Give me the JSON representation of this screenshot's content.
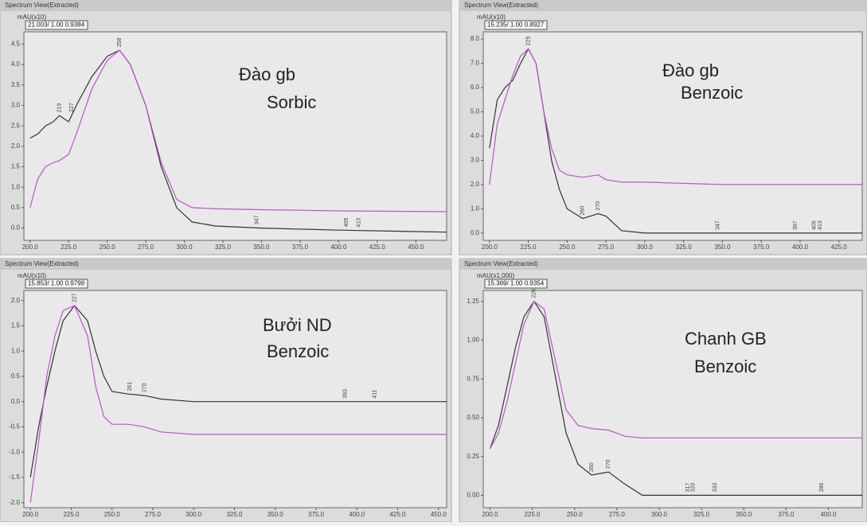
{
  "chart_data": [
    {
      "type": "line",
      "title": "Spectrum View(Extracted)",
      "y_label": "mAU(x10)",
      "header": "21.003/ 1.00 0.9384",
      "annotations": [
        "Đào gb",
        "Sorbic"
      ],
      "peaks": [
        219,
        227,
        258,
        347,
        405,
        413
      ],
      "x": [
        200,
        205,
        210,
        215,
        219,
        225,
        230,
        240,
        250,
        258,
        265,
        275,
        285,
        295,
        305,
        320,
        350,
        400,
        470
      ],
      "series": [
        {
          "color": "#333333",
          "values": [
            2.2,
            2.3,
            2.5,
            2.6,
            2.75,
            2.6,
            3.0,
            3.7,
            4.2,
            4.35,
            4.0,
            3.0,
            1.5,
            0.5,
            0.15,
            0.05,
            0.0,
            -0.05,
            -0.1
          ]
        },
        {
          "color": "#c050d0",
          "values": [
            0.5,
            1.2,
            1.5,
            1.6,
            1.65,
            1.8,
            2.3,
            3.4,
            4.1,
            4.35,
            4.0,
            3.0,
            1.6,
            0.7,
            0.5,
            0.47,
            0.45,
            0.42,
            0.4
          ]
        }
      ],
      "xlim": [
        196,
        470
      ],
      "xticks": [
        {
          "value": 200,
          "label": "200.0"
        },
        {
          "value": 225,
          "label": "225.0"
        },
        {
          "value": 250,
          "label": "250.0"
        },
        {
          "value": 275,
          "label": "275.0"
        },
        {
          "value": 300,
          "label": "300.0"
        },
        {
          "value": 325,
          "label": "325.0"
        },
        {
          "value": 350,
          "label": "350.0"
        },
        {
          "value": 375,
          "label": "375.0"
        },
        {
          "value": 400,
          "label": "400.0"
        },
        {
          "value": 425,
          "label": "425.0"
        },
        {
          "value": 450,
          "label": "450.0"
        }
      ],
      "ylim": [
        -0.3,
        4.8
      ],
      "yticks": [
        {
          "value": 0,
          "label": "0.0"
        },
        0.5,
        {
          "value": 1,
          "label": "1.0"
        },
        1.5,
        {
          "value": 2,
          "label": "2.0"
        },
        2.5,
        {
          "value": 3,
          "label": "3.0"
        },
        3.5,
        {
          "value": 4,
          "label": "4.0"
        },
        4.5
      ]
    },
    {
      "type": "line",
      "title": "Spectrum View(Extracted)",
      "y_label": "mAU(x10)",
      "header": "15.235/ 1.00 0.8927",
      "annotations": [
        "Đào gb",
        "Benzoic"
      ],
      "peaks": [
        225,
        260,
        270,
        347,
        397,
        409,
        413
      ],
      "x": [
        200,
        205,
        210,
        215,
        220,
        225,
        230,
        235,
        240,
        245,
        250,
        260,
        270,
        275,
        285,
        300,
        350,
        440
      ],
      "series": [
        {
          "color": "#333333",
          "values": [
            3.5,
            5.5,
            6.0,
            6.3,
            7.0,
            7.6,
            7.0,
            5.0,
            3.0,
            1.8,
            1.0,
            0.6,
            0.8,
            0.7,
            0.1,
            0.0,
            0.0,
            0.0
          ]
        },
        {
          "color": "#c050d0",
          "values": [
            2.0,
            4.5,
            5.5,
            6.5,
            7.3,
            7.6,
            7.0,
            5.0,
            3.5,
            2.6,
            2.4,
            2.3,
            2.4,
            2.2,
            2.1,
            2.1,
            2.0,
            2.0
          ]
        }
      ],
      "xlim": [
        196,
        440
      ],
      "xticks": [
        {
          "value": 200,
          "label": "200.0"
        },
        {
          "value": 225,
          "label": "225.0"
        },
        {
          "value": 250,
          "label": "250.0"
        },
        {
          "value": 275,
          "label": "275.0"
        },
        {
          "value": 300,
          "label": "300.0"
        },
        {
          "value": 325,
          "label": "325.0"
        },
        {
          "value": 350,
          "label": "350.0"
        },
        {
          "value": 375,
          "label": "375.0"
        },
        {
          "value": 400,
          "label": "400.0"
        },
        {
          "value": 425,
          "label": "425.0"
        }
      ],
      "ylim": [
        -0.3,
        8.3
      ],
      "yticks": [
        {
          "value": 0,
          "label": "0.0"
        },
        {
          "value": 1,
          "label": "1.0"
        },
        {
          "value": 2,
          "label": "2.0"
        },
        {
          "value": 3,
          "label": "3.0"
        },
        {
          "value": 4,
          "label": "4.0"
        },
        {
          "value": 5,
          "label": "5.0"
        },
        {
          "value": 6,
          "label": "6.0"
        },
        {
          "value": 7,
          "label": "7.0"
        },
        {
          "value": 8,
          "label": "8.0"
        }
      ]
    },
    {
      "type": "line",
      "title": "Spectrum View(Extracted)",
      "y_label": "mAU(x10)",
      "header": "15.853/ 1.00 0.9798",
      "annotations": [
        "Bưởi ND",
        "Benzoic"
      ],
      "peaks": [
        227,
        261,
        270,
        393,
        411
      ],
      "x": [
        200,
        205,
        210,
        215,
        220,
        227,
        235,
        240,
        245,
        250,
        260,
        270,
        280,
        300,
        350,
        455
      ],
      "series": [
        {
          "color": "#333333",
          "values": [
            -1.5,
            -0.5,
            0.3,
            1.0,
            1.6,
            1.9,
            1.6,
            1.0,
            0.5,
            0.2,
            0.15,
            0.12,
            0.05,
            0.0,
            0.0,
            0.0
          ]
        },
        {
          "color": "#c050d0",
          "values": [
            -2.0,
            -0.8,
            0.5,
            1.3,
            1.8,
            1.9,
            1.3,
            0.3,
            -0.3,
            -0.45,
            -0.45,
            -0.5,
            -0.6,
            -0.65,
            -0.65,
            -0.65
          ]
        }
      ],
      "xlim": [
        196,
        455
      ],
      "xticks": [
        {
          "value": 200,
          "label": "200.0"
        },
        {
          "value": 225,
          "label": "225.0"
        },
        {
          "value": 250,
          "label": "250.0"
        },
        {
          "value": 275,
          "label": "275.0"
        },
        {
          "value": 300,
          "label": "300.0"
        },
        {
          "value": 325,
          "label": "325.0"
        },
        {
          "value": 350,
          "label": "350.0"
        },
        {
          "value": 375,
          "label": "375.0"
        },
        {
          "value": 400,
          "label": "400.0"
        },
        {
          "value": 425,
          "label": "425.0"
        },
        {
          "value": 450,
          "label": "450.0"
        }
      ],
      "ylim": [
        -2.1,
        2.2
      ],
      "yticks": [
        {
          "value": -2,
          "label": "-2.0"
        },
        -1.5,
        {
          "value": -1,
          "label": "-1.0"
        },
        -0.5,
        {
          "value": 0,
          "label": "0.0"
        },
        0.5,
        {
          "value": 1,
          "label": "1.0"
        },
        1.5,
        {
          "value": 2,
          "label": "2.0"
        }
      ]
    },
    {
      "type": "line",
      "title": "Spectrum View(Extracted)",
      "y_label": "mAU(x1,000)",
      "header": "15.369/ 1.00 0.9354",
      "annotations": [
        "Chanh GB",
        "Benzoic"
      ],
      "peaks": [
        226,
        260,
        270,
        317,
        320,
        333,
        396
      ],
      "x": [
        200,
        205,
        210,
        215,
        220,
        226,
        232,
        238,
        245,
        252,
        260,
        270,
        280,
        290,
        300,
        350,
        420
      ],
      "series": [
        {
          "color": "#333333",
          "values": [
            0.3,
            0.45,
            0.7,
            0.95,
            1.15,
            1.25,
            1.15,
            0.8,
            0.4,
            0.2,
            0.13,
            0.15,
            0.07,
            0.0,
            0.0,
            0.0,
            0.0
          ]
        },
        {
          "color": "#c050d0",
          "values": [
            0.3,
            0.4,
            0.6,
            0.85,
            1.1,
            1.25,
            1.2,
            0.9,
            0.55,
            0.45,
            0.43,
            0.42,
            0.38,
            0.37,
            0.37,
            0.37,
            0.37
          ]
        }
      ],
      "xlim": [
        196,
        420
      ],
      "xticks": [
        {
          "value": 200,
          "label": "200.0"
        },
        {
          "value": 225,
          "label": "225.0"
        },
        {
          "value": 250,
          "label": "250.0"
        },
        {
          "value": 275,
          "label": "275.0"
        },
        {
          "value": 300,
          "label": "300.0"
        },
        {
          "value": 325,
          "label": "325.0"
        },
        {
          "value": 350,
          "label": "350.0"
        },
        {
          "value": 375,
          "label": "375.0"
        },
        {
          "value": 400,
          "label": "400.0"
        }
      ],
      "ylim": [
        -0.08,
        1.32
      ],
      "yticks": [
        {
          "value": 0,
          "label": "0.00"
        },
        0.25,
        {
          "value": 0.5,
          "label": "0.50"
        },
        0.75,
        {
          "value": 1,
          "label": "1.00"
        },
        1.25
      ]
    }
  ]
}
